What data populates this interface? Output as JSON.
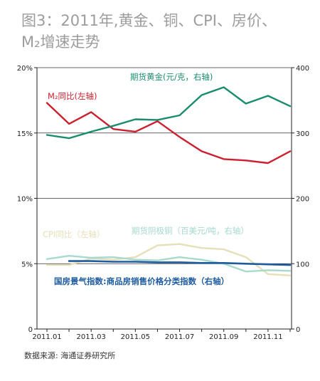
{
  "title_line1": "图3：2011年,黄金、铜、CPI、房价、",
  "title_line2": "M₂增速走势",
  "source": "数据来源: 海通证券研究所",
  "colors": {
    "gold": "#1a8c6e",
    "m2": "#cc1f2f",
    "cpi": "#e6dfb9",
    "copper": "#a7d9cc",
    "house": "#1f5c9e",
    "axis": "#222222",
    "grid": "#333333"
  },
  "chart_data": {
    "type": "line",
    "x": [
      "2011.01",
      "2011.02",
      "2011.03",
      "2011.04",
      "2011.05",
      "2011.06",
      "2011.07",
      "2011.08",
      "2011.09",
      "2011.10",
      "2011.11",
      "2011.12"
    ],
    "x_tick_labels": [
      "2011.01",
      "2011.03",
      "2011.05",
      "2011.07",
      "2011.09",
      "2011.11"
    ],
    "y_left": {
      "ticks": [
        "0",
        "5%",
        "10%",
        "15%",
        "20%"
      ],
      "values": [
        0,
        5,
        10,
        15,
        20
      ],
      "range": [
        0,
        20
      ]
    },
    "y_right": {
      "ticks": [
        "0",
        "100",
        "200",
        "300",
        "400"
      ],
      "values": [
        0,
        100,
        200,
        300,
        400
      ],
      "range": [
        0,
        400
      ]
    },
    "grid": "horizontal",
    "series": [
      {
        "name": "期货黄金(元/克，右轴)",
        "axis": "right",
        "color": "#1a8c6e",
        "values": [
          297,
          292,
          302,
          311,
          321,
          320,
          327,
          358,
          370,
          345,
          357,
          341
        ]
      },
      {
        "name": "M₂同比(左轴)",
        "axis": "left",
        "color": "#cc1f2f",
        "values": [
          17.3,
          15.7,
          16.6,
          15.3,
          15.1,
          15.9,
          14.7,
          13.6,
          13.0,
          12.9,
          12.7,
          13.6
        ]
      },
      {
        "name": "CPI同比（左轴）",
        "axis": "left",
        "color": "#e6dfb9",
        "values": [
          4.9,
          4.9,
          5.4,
          5.3,
          5.5,
          6.4,
          6.5,
          6.2,
          6.1,
          5.5,
          4.2,
          4.1
        ]
      },
      {
        "name": "期货阴极铜（百美元/吨，右轴）",
        "axis": "right",
        "color": "#a7d9cc",
        "values": [
          107,
          112,
          109,
          110,
          106,
          105,
          110,
          106,
          100,
          88,
          90,
          89
        ]
      },
      {
        "name": "国房景气指数:商品房销售价格分类指数（右轴）",
        "axis": "right",
        "color": "#1f5c9e",
        "values": [
          null,
          104,
          104,
          103,
          103,
          102,
          102,
          101,
          101,
          100,
          99,
          98
        ]
      }
    ]
  }
}
